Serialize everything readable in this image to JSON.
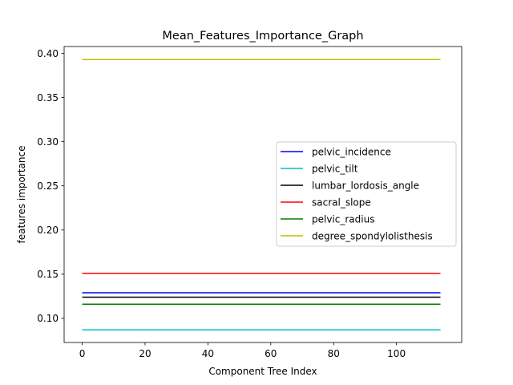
{
  "chart_data": {
    "type": "line",
    "title": "Mean_Features_Importance_Graph",
    "xlabel": "Component Tree Index",
    "ylabel": "features importance",
    "xlim": [
      -5.75,
      120.75
    ],
    "ylim": [
      0.0727,
      0.4077
    ],
    "x": [
      0,
      114
    ],
    "xticks": [
      0,
      20,
      40,
      60,
      80,
      100
    ],
    "xtick_labels": [
      "0",
      "20",
      "40",
      "60",
      "80",
      "100"
    ],
    "yticks": [
      0.1,
      0.15,
      0.2,
      0.25,
      0.3,
      0.35,
      0.4
    ],
    "ytick_labels": [
      "0.10",
      "0.15",
      "0.20",
      "0.25",
      "0.30",
      "0.35",
      "0.40"
    ],
    "grid": false,
    "legend_position": "center-right",
    "series": [
      {
        "name": "pelvic_incidence",
        "color": "#0000ff",
        "values": [
          0.129,
          0.129
        ]
      },
      {
        "name": "pelvic_tilt",
        "color": "#00bfbf",
        "values": [
          0.087,
          0.087
        ]
      },
      {
        "name": "lumbar_lordosis_angle",
        "color": "#000000",
        "values": [
          0.124,
          0.124
        ]
      },
      {
        "name": "sacral_slope",
        "color": "#ff0000",
        "values": [
          0.151,
          0.151
        ]
      },
      {
        "name": "pelvic_radius",
        "color": "#008000",
        "values": [
          0.116,
          0.116
        ]
      },
      {
        "name": "degree_spondylolisthesis",
        "color": "#bfbf00",
        "values": [
          0.393,
          0.393
        ]
      }
    ]
  }
}
